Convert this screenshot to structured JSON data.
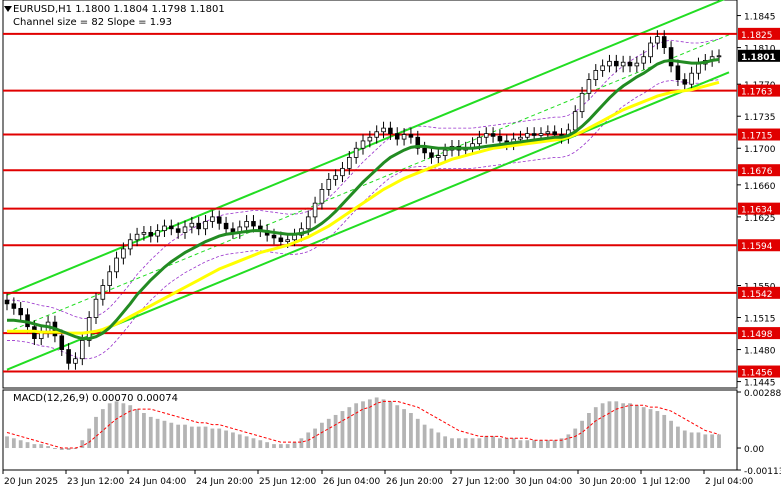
{
  "header": {
    "symbol_line": "EURUSD,H1  1.1800 1.1804 1.1798 1.1801",
    "channel_line": "Channel size = 82 Slope = 1.93"
  },
  "macd": {
    "label": "MACD(12,26,9) 0.00070 0.00074",
    "scale": [
      "0.00288",
      "0.00",
      "-0.00113"
    ]
  },
  "colors": {
    "level_line": "#e00000",
    "level_box": "#e00000",
    "channel": "#22dd22",
    "sma_fast": "#228b22",
    "sma_slow": "#ffff00",
    "envelope": "#9932cc",
    "macd_hist": "#b4b4b4",
    "macd_signal": "#ff0000",
    "current_box": "#000000"
  },
  "chart_data": {
    "type": "candlestick",
    "symbol": "EURUSD",
    "timeframe": "H1",
    "ylim": [
      1.1438,
      1.1862
    ],
    "price_ticks": [
      "1.1845",
      "1.1810",
      "1.1770",
      "1.1735",
      "1.1700",
      "1.1660",
      "1.1625",
      "1.1550",
      "1.1515",
      "1.1480",
      "1.1445"
    ],
    "support_resistance_levels": [
      {
        "label": "1.1825",
        "value": 1.1825
      },
      {
        "label": "1.1763",
        "value": 1.1763
      },
      {
        "label": "1.1715",
        "value": 1.1715
      },
      {
        "label": "1.1676",
        "value": 1.1676
      },
      {
        "label": "1.1634",
        "value": 1.1634
      },
      {
        "label": "1.1594",
        "value": 1.1594
      },
      {
        "label": "1.1542",
        "value": 1.1542
      },
      {
        "label": "1.1498",
        "value": 1.1498
      },
      {
        "label": "1.1456",
        "value": 1.1456
      }
    ],
    "current_price": "1.1801",
    "x_tick_labels": [
      "20 Jun 2025",
      "23 Jun 12:00",
      "24 Jun 04:00",
      "24 Jun 20:00",
      "25 Jun 12:00",
      "26 Jun 04:00",
      "26 Jun 20:00",
      "27 Jun 12:00",
      "30 Jun 04:00",
      "30 Jun 20:00",
      "1 Jul 12:00",
      "2 Jul 04:00"
    ],
    "closes": [
      1.153,
      1.1525,
      1.1518,
      1.1505,
      1.1492,
      1.15,
      1.151,
      1.1495,
      1.148,
      1.1465,
      1.147,
      1.149,
      1.1515,
      1.1535,
      1.155,
      1.1565,
      1.158,
      1.159,
      1.16,
      1.1606,
      1.1608,
      1.1604,
      1.161,
      1.1615,
      1.1612,
      1.1608,
      1.1614,
      1.1618,
      1.1612,
      1.162,
      1.1625,
      1.1618,
      1.1612,
      1.1608,
      1.1614,
      1.162,
      1.1615,
      1.161,
      1.1605,
      1.1602,
      1.1598,
      1.16,
      1.1605,
      1.1612,
      1.1625,
      1.164,
      1.1655,
      1.1666,
      1.167,
      1.1678,
      1.169,
      1.17,
      1.1708,
      1.1712,
      1.1718,
      1.1722,
      1.1716,
      1.171,
      1.1715,
      1.1712,
      1.17,
      1.1695,
      1.169,
      1.1692,
      1.1698,
      1.1702,
      1.1698,
      1.17,
      1.1705,
      1.1712,
      1.1716,
      1.1713,
      1.1708,
      1.1705,
      1.171,
      1.1712,
      1.1716,
      1.1714,
      1.1716,
      1.1718,
      1.1715,
      1.1712,
      1.172,
      1.174,
      1.176,
      1.1775,
      1.1785,
      1.179,
      1.1795,
      1.179,
      1.1794,
      1.179,
      1.1793,
      1.18,
      1.1815,
      1.1822,
      1.181,
      1.179,
      1.1775,
      1.177,
      1.1782,
      1.1792,
      1.1796,
      1.18,
      1.1801
    ],
    "sma_fast": [
      1.1512,
      1.1512,
      1.1511,
      1.151,
      1.1508,
      1.1506,
      1.1505,
      1.1503,
      1.15,
      1.1497,
      1.1494,
      1.1492,
      1.1492,
      1.1494,
      1.1498,
      1.1504,
      1.1512,
      1.1521,
      1.153,
      1.154,
      1.1548,
      1.1556,
      1.1563,
      1.157,
      1.1576,
      1.1581,
      1.1586,
      1.159,
      1.1594,
      1.1598,
      1.1601,
      1.1604,
      1.1606,
      1.1607,
      1.1608,
      1.1609,
      1.161,
      1.161,
      1.1609,
      1.1608,
      1.1607,
      1.1606,
      1.1606,
      1.1607,
      1.1609,
      1.1613,
      1.1618,
      1.1624,
      1.1631,
      1.1639,
      1.1647,
      1.1655,
      1.1663,
      1.167,
      1.1677,
      1.1684,
      1.169,
      1.1694,
      1.1698,
      1.1701,
      1.1702,
      1.1702,
      1.1701,
      1.17,
      1.17,
      1.17,
      1.17,
      1.17,
      1.17,
      1.1701,
      1.1702,
      1.1703,
      1.1704,
      1.1705,
      1.1706,
      1.1707,
      1.1708,
      1.1709,
      1.171,
      1.1711,
      1.1712,
      1.1712,
      1.1714,
      1.1718,
      1.1724,
      1.1731,
      1.1739,
      1.1747,
      1.1755,
      1.1762,
      1.1768,
      1.1773,
      1.1778,
      1.1782,
      1.1787,
      1.1792,
      1.1795,
      1.1796,
      1.1795,
      1.1794,
      1.1793,
      1.1793,
      1.1794,
      1.1796,
      1.1797
    ],
    "sma_slow": [
      1.15,
      1.15,
      1.15,
      1.15,
      1.15,
      1.1499,
      1.1499,
      1.1499,
      1.1499,
      1.1498,
      1.1498,
      1.1498,
      1.1499,
      1.15,
      1.1502,
      1.1505,
      1.1508,
      1.1512,
      1.1516,
      1.152,
      1.1524,
      1.1528,
      1.1532,
      1.1536,
      1.154,
      1.1544,
      1.1548,
      1.1552,
      1.1556,
      1.156,
      1.1564,
      1.1568,
      1.1571,
      1.1574,
      1.1577,
      1.158,
      1.1583,
      1.1586,
      1.1588,
      1.159,
      1.1592,
      1.1594,
      1.1597,
      1.16,
      1.1603,
      1.1607,
      1.1611,
      1.1615,
      1.162,
      1.1625,
      1.163,
      1.1635,
      1.164,
      1.1645,
      1.165,
      1.1655,
      1.1659,
      1.1663,
      1.1667,
      1.167,
      1.1673,
      1.1676,
      1.1679,
      1.1682,
      1.1685,
      1.1688,
      1.169,
      1.1692,
      1.1694,
      1.1696,
      1.1698,
      1.17,
      1.1701,
      1.1702,
      1.1703,
      1.1704,
      1.1705,
      1.1706,
      1.1707,
      1.1708,
      1.1709,
      1.171,
      1.1712,
      1.1715,
      1.1718,
      1.1722,
      1.1726,
      1.173,
      1.1734,
      1.1738,
      1.1742,
      1.1745,
      1.1748,
      1.1751,
      1.1754,
      1.1757,
      1.1759,
      1.1761,
      1.1762,
      1.1763,
      1.1764,
      1.1766,
      1.1768,
      1.177,
      1.1772
    ],
    "macd_histogram": [
      0.0006,
      0.0005,
      0.0004,
      0.0003,
      0.0002,
      0.0002,
      0.0001,
      0.0,
      -0.0001,
      -0.0001,
      0.0,
      0.0004,
      0.001,
      0.0016,
      0.002,
      0.0023,
      0.0024,
      0.0023,
      0.0022,
      0.002,
      0.0018,
      0.0016,
      0.0015,
      0.0014,
      0.0013,
      0.0012,
      0.0012,
      0.0011,
      0.0011,
      0.0011,
      0.001,
      0.001,
      0.0009,
      0.0008,
      0.0007,
      0.0006,
      0.0005,
      0.0004,
      0.0003,
      0.0002,
      0.0002,
      0.0002,
      0.0003,
      0.0005,
      0.0008,
      0.001,
      0.0013,
      0.0015,
      0.0017,
      0.0019,
      0.0021,
      0.0023,
      0.0024,
      0.0025,
      0.0026,
      0.0025,
      0.0024,
      0.0022,
      0.002,
      0.0018,
      0.0015,
      0.0012,
      0.001,
      0.0008,
      0.0006,
      0.0005,
      0.0005,
      0.0005,
      0.0005,
      0.0005,
      0.0006,
      0.0006,
      0.0005,
      0.0005,
      0.0005,
      0.0004,
      0.0004,
      0.0004,
      0.0004,
      0.0004,
      0.0004,
      0.0005,
      0.0007,
      0.001,
      0.0014,
      0.0018,
      0.0021,
      0.0023,
      0.0024,
      0.0024,
      0.0023,
      0.0023,
      0.0022,
      0.0021,
      0.002,
      0.0019,
      0.0017,
      0.0014,
      0.0011,
      0.0009,
      0.0008,
      0.0008,
      0.0007,
      0.0007,
      0.0007
    ],
    "macd_signal": [
      0.0008,
      0.0007,
      0.0006,
      0.0005,
      0.0004,
      0.0003,
      0.0002,
      0.0001,
      0.0,
      0.0,
      0.0,
      0.0001,
      0.0003,
      0.0006,
      0.0009,
      0.0012,
      0.0015,
      0.0017,
      0.0019,
      0.002,
      0.002,
      0.002,
      0.0019,
      0.0018,
      0.0017,
      0.0016,
      0.0015,
      0.0014,
      0.0013,
      0.0013,
      0.0012,
      0.0012,
      0.0011,
      0.001,
      0.0009,
      0.0008,
      0.0007,
      0.0006,
      0.0005,
      0.0004,
      0.0003,
      0.0003,
      0.0003,
      0.0003,
      0.0004,
      0.0006,
      0.0008,
      0.001,
      0.0012,
      0.0014,
      0.0016,
      0.0018,
      0.002,
      0.0021,
      0.0023,
      0.0024,
      0.0024,
      0.0024,
      0.0023,
      0.0022,
      0.0021,
      0.0019,
      0.0017,
      0.0015,
      0.0013,
      0.0011,
      0.0009,
      0.0008,
      0.0007,
      0.0006,
      0.0006,
      0.0006,
      0.0006,
      0.0005,
      0.0005,
      0.0005,
      0.0005,
      0.0004,
      0.0004,
      0.0004,
      0.0004,
      0.0004,
      0.0005,
      0.0006,
      0.0008,
      0.0011,
      0.0014,
      0.0016,
      0.0018,
      0.002,
      0.0021,
      0.0022,
      0.0022,
      0.0022,
      0.0021,
      0.0021,
      0.002,
      0.0019,
      0.0017,
      0.0015,
      0.0013,
      0.0011,
      0.0009,
      0.0008,
      0.0007
    ],
    "channel_upper": {
      "start": 1.154,
      "end": 1.1865
    },
    "channel_lower": {
      "start": 1.1458,
      "end": 1.1783
    },
    "channel_mid": {
      "start": 1.1499,
      "end": 1.1824
    }
  }
}
